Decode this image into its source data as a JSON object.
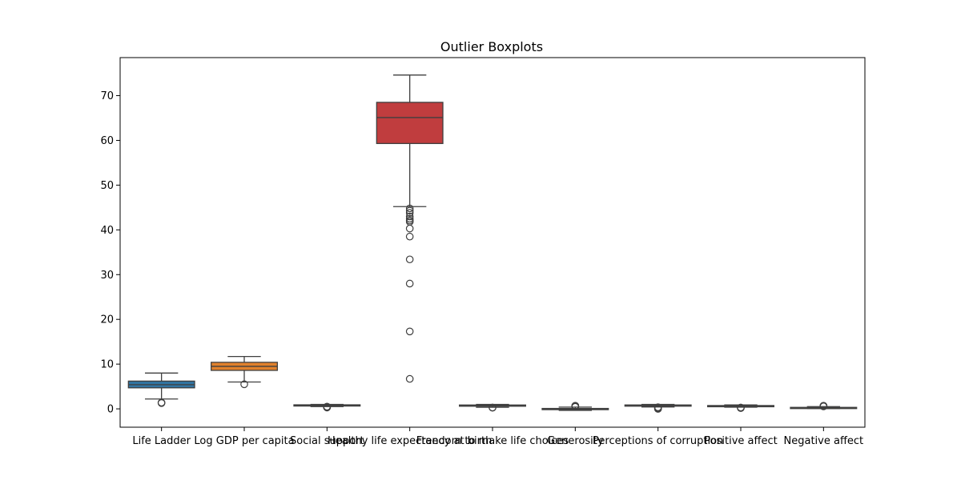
{
  "chart_data": {
    "type": "boxplot",
    "title": "Outlier Boxplots",
    "xlabel": "",
    "ylabel": "",
    "ylim": [
      -4.1,
      78.5
    ],
    "yticks": [
      0,
      10,
      20,
      30,
      40,
      50,
      60,
      70
    ],
    "grid": false,
    "legend": "none",
    "series": [
      {
        "name": "Life Ladder",
        "color": "#3274a1",
        "whisker_low": 2.2,
        "q1": 4.7,
        "median": 5.4,
        "q3": 6.2,
        "whisker_high": 8.0,
        "outliers": [
          1.3,
          1.4
        ]
      },
      {
        "name": "Log GDP per capita",
        "color": "#e1812c",
        "whisker_low": 6.0,
        "q1": 8.6,
        "median": 9.5,
        "q3": 10.4,
        "whisker_high": 11.7,
        "outliers": [
          5.5
        ]
      },
      {
        "name": "Social support",
        "color": "#3a923a",
        "whisker_low": 0.5,
        "q1": 0.75,
        "median": 0.83,
        "q3": 0.9,
        "whisker_high": 1.0,
        "outliers": [
          0.3,
          0.35,
          0.4,
          0.45,
          0.5
        ]
      },
      {
        "name": "Healthy life expectancy at birth",
        "color": "#c03d3e",
        "whisker_low": 45.2,
        "q1": 59.3,
        "median": 65.1,
        "q3": 68.5,
        "whisker_high": 74.6,
        "outliers": [
          44.8,
          44.3,
          43.8,
          43.0,
          42.5,
          42.1,
          41.8,
          40.3,
          38.5,
          33.4,
          28.0,
          17.3,
          6.7
        ]
      },
      {
        "name": "Freedom to make life choices",
        "color": "#9372b2",
        "whisker_low": 0.35,
        "q1": 0.66,
        "median": 0.76,
        "q3": 0.86,
        "whisker_high": 0.98,
        "outliers": [
          0.26,
          0.3
        ]
      },
      {
        "name": "Generosity",
        "color": "#845b53",
        "whisker_low": -0.34,
        "q1": -0.11,
        "median": -0.02,
        "q3": 0.09,
        "whisker_high": 0.39,
        "outliers": [
          0.45,
          0.55,
          0.65,
          0.7
        ]
      },
      {
        "name": "Perceptions of corruption",
        "color": "#d684bd",
        "whisker_low": 0.43,
        "q1": 0.69,
        "median": 0.8,
        "q3": 0.87,
        "whisker_high": 0.98,
        "outliers": [
          0.0,
          0.05,
          0.15,
          0.25,
          0.35
        ]
      },
      {
        "name": "Positive affect",
        "color": "#7f7f7f",
        "whisker_low": 0.38,
        "q1": 0.57,
        "median": 0.66,
        "q3": 0.74,
        "whisker_high": 0.88,
        "outliers": [
          0.18,
          0.25,
          0.3
        ]
      },
      {
        "name": "Negative affect",
        "color": "#a9aa35",
        "whisker_low": 0.08,
        "q1": 0.21,
        "median": 0.26,
        "q3": 0.33,
        "whisker_high": 0.5,
        "outliers": [
          0.55,
          0.6,
          0.65,
          0.7
        ]
      }
    ]
  }
}
